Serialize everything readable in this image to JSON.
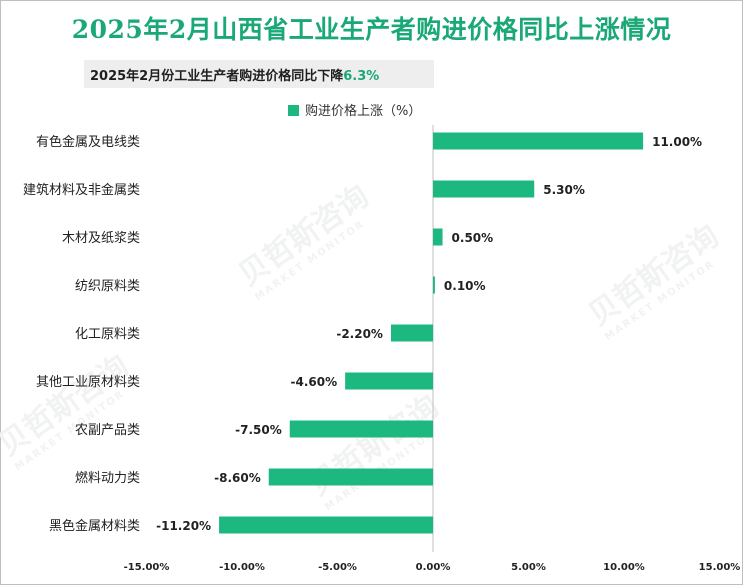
{
  "title": "2025年2月山西省工业生产者购进价格同比上涨情况",
  "subtitle": {
    "text": "2025年2月份工业生产者购进价格同比下降",
    "highlight": "6.3%"
  },
  "legend": {
    "label": "购进价格上涨（%）"
  },
  "watermark": {
    "cn": "贝哲斯咨询",
    "en": "MARKET MONITOR"
  },
  "colors": {
    "bar": "#1db87f",
    "title": "#1aa877",
    "axis": "#bfbfbf"
  },
  "chart_data": {
    "type": "bar",
    "orientation": "horizontal",
    "title": "2025年2月山西省工业生产者购进价格同比上涨情况",
    "series": [
      {
        "name": "购进价格上涨（%）",
        "categories": [
          "有色金属及电线类",
          "建筑材料及非金属类",
          "木材及纸浆类",
          "纺织原料类",
          "化工原料类",
          "其他工业原材料类",
          "农副产品类",
          "燃料动力类",
          "黑色金属材料类"
        ],
        "values": [
          11.0,
          5.3,
          0.5,
          0.1,
          -2.2,
          -4.6,
          -7.5,
          -8.6,
          -11.2
        ],
        "labels": [
          "11.00%",
          "5.30%",
          "0.50%",
          "0.10%",
          "-2.20%",
          "-4.60%",
          "-7.50%",
          "-8.60%",
          "-11.20%"
        ]
      }
    ],
    "xlim": [
      -15,
      15
    ],
    "xticks": [
      -15,
      -10,
      -5,
      0,
      5,
      10,
      15
    ],
    "xtick_labels": [
      "-15.00%",
      "-10.00%",
      "-5.00%",
      "0.00%",
      "5.00%",
      "10.00%",
      "15.00%"
    ],
    "legend_position": "top-center",
    "grid": false
  }
}
